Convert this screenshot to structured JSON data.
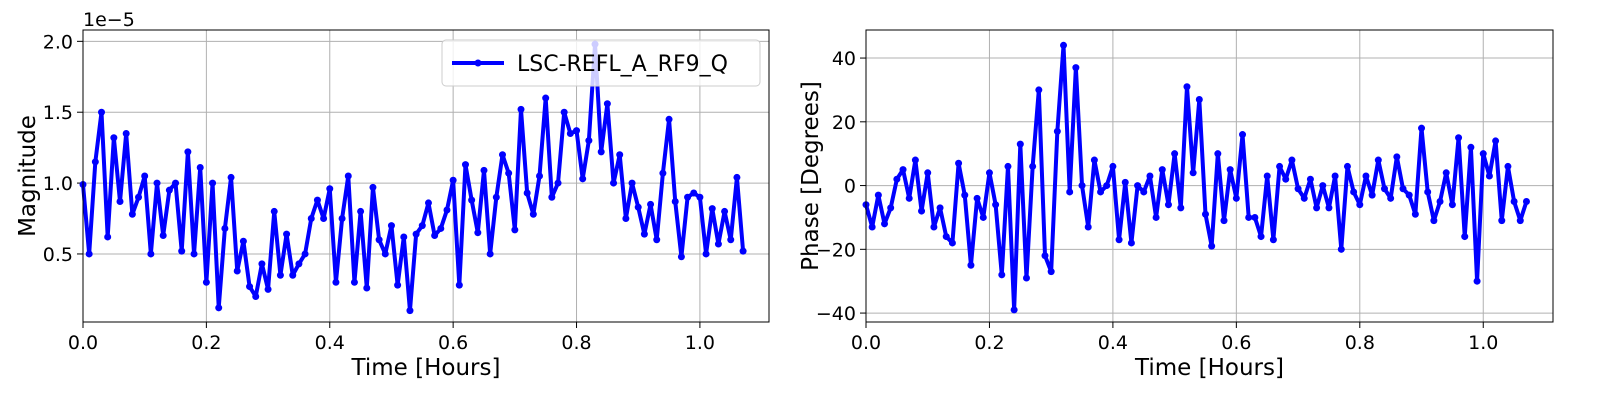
{
  "chart_data": [
    {
      "type": "line",
      "x_label": "Time [Hours]",
      "y_label": "Magnitude",
      "offset_text": "1e−5",
      "x": [
        0,
        0.01,
        0.02,
        0.03,
        0.04,
        0.05,
        0.06,
        0.07,
        0.08,
        0.09,
        0.1,
        0.11,
        0.12,
        0.13,
        0.14,
        0.15,
        0.16,
        0.17,
        0.18,
        0.19,
        0.2,
        0.21,
        0.22,
        0.23,
        0.24,
        0.25,
        0.26,
        0.27,
        0.28,
        0.29,
        0.3,
        0.31,
        0.32,
        0.33,
        0.34,
        0.35,
        0.36,
        0.37,
        0.38,
        0.39,
        0.4,
        0.41,
        0.42,
        0.43,
        0.44,
        0.45,
        0.46,
        0.47,
        0.48,
        0.49,
        0.5,
        0.51,
        0.52,
        0.53,
        0.54,
        0.55,
        0.56,
        0.57,
        0.58,
        0.59,
        0.6,
        0.61,
        0.62,
        0.63,
        0.64,
        0.65,
        0.66,
        0.67,
        0.68,
        0.69,
        0.7,
        0.71,
        0.72,
        0.73,
        0.74,
        0.75,
        0.76,
        0.77,
        0.78,
        0.79,
        0.8,
        0.81,
        0.82,
        0.83,
        0.84,
        0.85,
        0.86,
        0.87,
        0.88,
        0.89,
        0.9,
        0.91,
        0.92,
        0.93,
        0.94,
        0.95,
        0.96,
        0.97,
        0.98,
        0.99,
        1.0,
        1.01,
        1.02,
        1.03,
        1.04,
        1.05,
        1.06,
        1.07
      ],
      "series": [
        {
          "name": "LSC-REFL_A_RF9_Q",
          "color": "#0000ff",
          "values": [
            0.99,
            0.5,
            1.15,
            1.5,
            0.62,
            1.32,
            0.87,
            1.35,
            0.78,
            0.9,
            1.05,
            0.5,
            1.0,
            0.63,
            0.95,
            1.0,
            0.52,
            1.22,
            0.5,
            1.11,
            0.3,
            1.0,
            0.12,
            0.68,
            1.04,
            0.38,
            0.59,
            0.27,
            0.2,
            0.43,
            0.25,
            0.8,
            0.35,
            0.64,
            0.35,
            0.43,
            0.5,
            0.75,
            0.88,
            0.75,
            0.96,
            0.3,
            0.75,
            1.05,
            0.3,
            0.8,
            0.26,
            0.97,
            0.6,
            0.5,
            0.7,
            0.28,
            0.62,
            0.1,
            0.64,
            0.7,
            0.86,
            0.63,
            0.68,
            0.81,
            1.02,
            0.28,
            1.13,
            0.88,
            0.65,
            1.09,
            0.5,
            0.9,
            1.2,
            1.07,
            0.67,
            1.52,
            0.93,
            0.78,
            1.05,
            1.6,
            0.9,
            1.0,
            1.5,
            1.35,
            1.37,
            1.03,
            1.3,
            1.98,
            1.22,
            1.56,
            1.0,
            1.2,
            0.75,
            1.0,
            0.83,
            0.64,
            0.85,
            0.6,
            1.07,
            1.45,
            0.87,
            0.48,
            0.9,
            0.93,
            0.9,
            0.5,
            0.82,
            0.57,
            0.8,
            0.6,
            1.04,
            0.52
          ]
        }
      ],
      "xlim": [
        0,
        1.112
      ],
      "ylim": [
        0.02,
        2.08
      ],
      "xticks": [
        {
          "value": 0,
          "label": "0.0"
        },
        0.2,
        0.4,
        0.6,
        0.8,
        {
          "value": 1,
          "label": "1.0"
        }
      ],
      "yticks": [
        0.5,
        {
          "value": 1,
          "label": "1.0"
        },
        1.5,
        {
          "value": 2,
          "label": "2.0"
        }
      ],
      "grid": true,
      "legend": "upper right"
    },
    {
      "type": "line",
      "x_label": "Time [Hours]",
      "y_label": "Phase [Degrees]",
      "x": [
        0,
        0.01,
        0.02,
        0.03,
        0.04,
        0.05,
        0.06,
        0.07,
        0.08,
        0.09,
        0.1,
        0.11,
        0.12,
        0.13,
        0.14,
        0.15,
        0.16,
        0.17,
        0.18,
        0.19,
        0.2,
        0.21,
        0.22,
        0.23,
        0.24,
        0.25,
        0.26,
        0.27,
        0.28,
        0.29,
        0.3,
        0.31,
        0.32,
        0.33,
        0.34,
        0.35,
        0.36,
        0.37,
        0.38,
        0.39,
        0.4,
        0.41,
        0.42,
        0.43,
        0.44,
        0.45,
        0.46,
        0.47,
        0.48,
        0.49,
        0.5,
        0.51,
        0.52,
        0.53,
        0.54,
        0.55,
        0.56,
        0.57,
        0.58,
        0.59,
        0.6,
        0.61,
        0.62,
        0.63,
        0.64,
        0.65,
        0.66,
        0.67,
        0.68,
        0.69,
        0.7,
        0.71,
        0.72,
        0.73,
        0.74,
        0.75,
        0.76,
        0.77,
        0.78,
        0.79,
        0.8,
        0.81,
        0.82,
        0.83,
        0.84,
        0.85,
        0.86,
        0.87,
        0.88,
        0.89,
        0.9,
        0.91,
        0.92,
        0.93,
        0.94,
        0.95,
        0.96,
        0.97,
        0.98,
        0.99,
        1.0,
        1.01,
        1.02,
        1.03,
        1.04,
        1.05,
        1.06,
        1.07
      ],
      "series": [
        {
          "color": "#0000ff",
          "values": [
            -6,
            -13,
            -3,
            -12,
            -7,
            2,
            5,
            -4,
            8,
            -8,
            4,
            -13,
            -7,
            -16,
            -18,
            7,
            -3,
            -25,
            -4,
            -10,
            4,
            -6,
            -28,
            6,
            -39,
            13,
            -29,
            6,
            30,
            -22,
            -27,
            17,
            44,
            -2,
            37,
            0,
            -13,
            8,
            -2,
            0,
            6,
            -17,
            1,
            -18,
            0,
            -2,
            3,
            -10,
            5,
            -6,
            10,
            -7,
            31,
            4,
            27,
            -9,
            -19,
            10,
            -11,
            5,
            -4,
            16,
            -10,
            -10,
            -16,
            3,
            -17,
            6,
            2,
            8,
            -1,
            -4,
            2,
            -7,
            0,
            -7,
            3,
            -20,
            6,
            -2,
            -6,
            3,
            -3,
            8,
            -1,
            -4,
            9,
            -1,
            -3,
            -9,
            18,
            -2,
            -11,
            -5,
            4,
            -6,
            15,
            -16,
            12,
            -30,
            10,
            3,
            14,
            -11,
            6,
            -5,
            -11,
            -5
          ]
        }
      ],
      "xlim": [
        0,
        1.113
      ],
      "ylim": [
        -42.8,
        48.8
      ],
      "xticks": [
        {
          "value": 0,
          "label": "0.0"
        },
        0.2,
        0.4,
        0.6,
        0.8,
        {
          "value": 1,
          "label": "1.0"
        }
      ],
      "yticks": [
        {
          "value": -40,
          "label": "−40"
        },
        {
          "value": -20,
          "label": "−20"
        },
        0,
        20,
        40
      ],
      "grid": true
    }
  ]
}
